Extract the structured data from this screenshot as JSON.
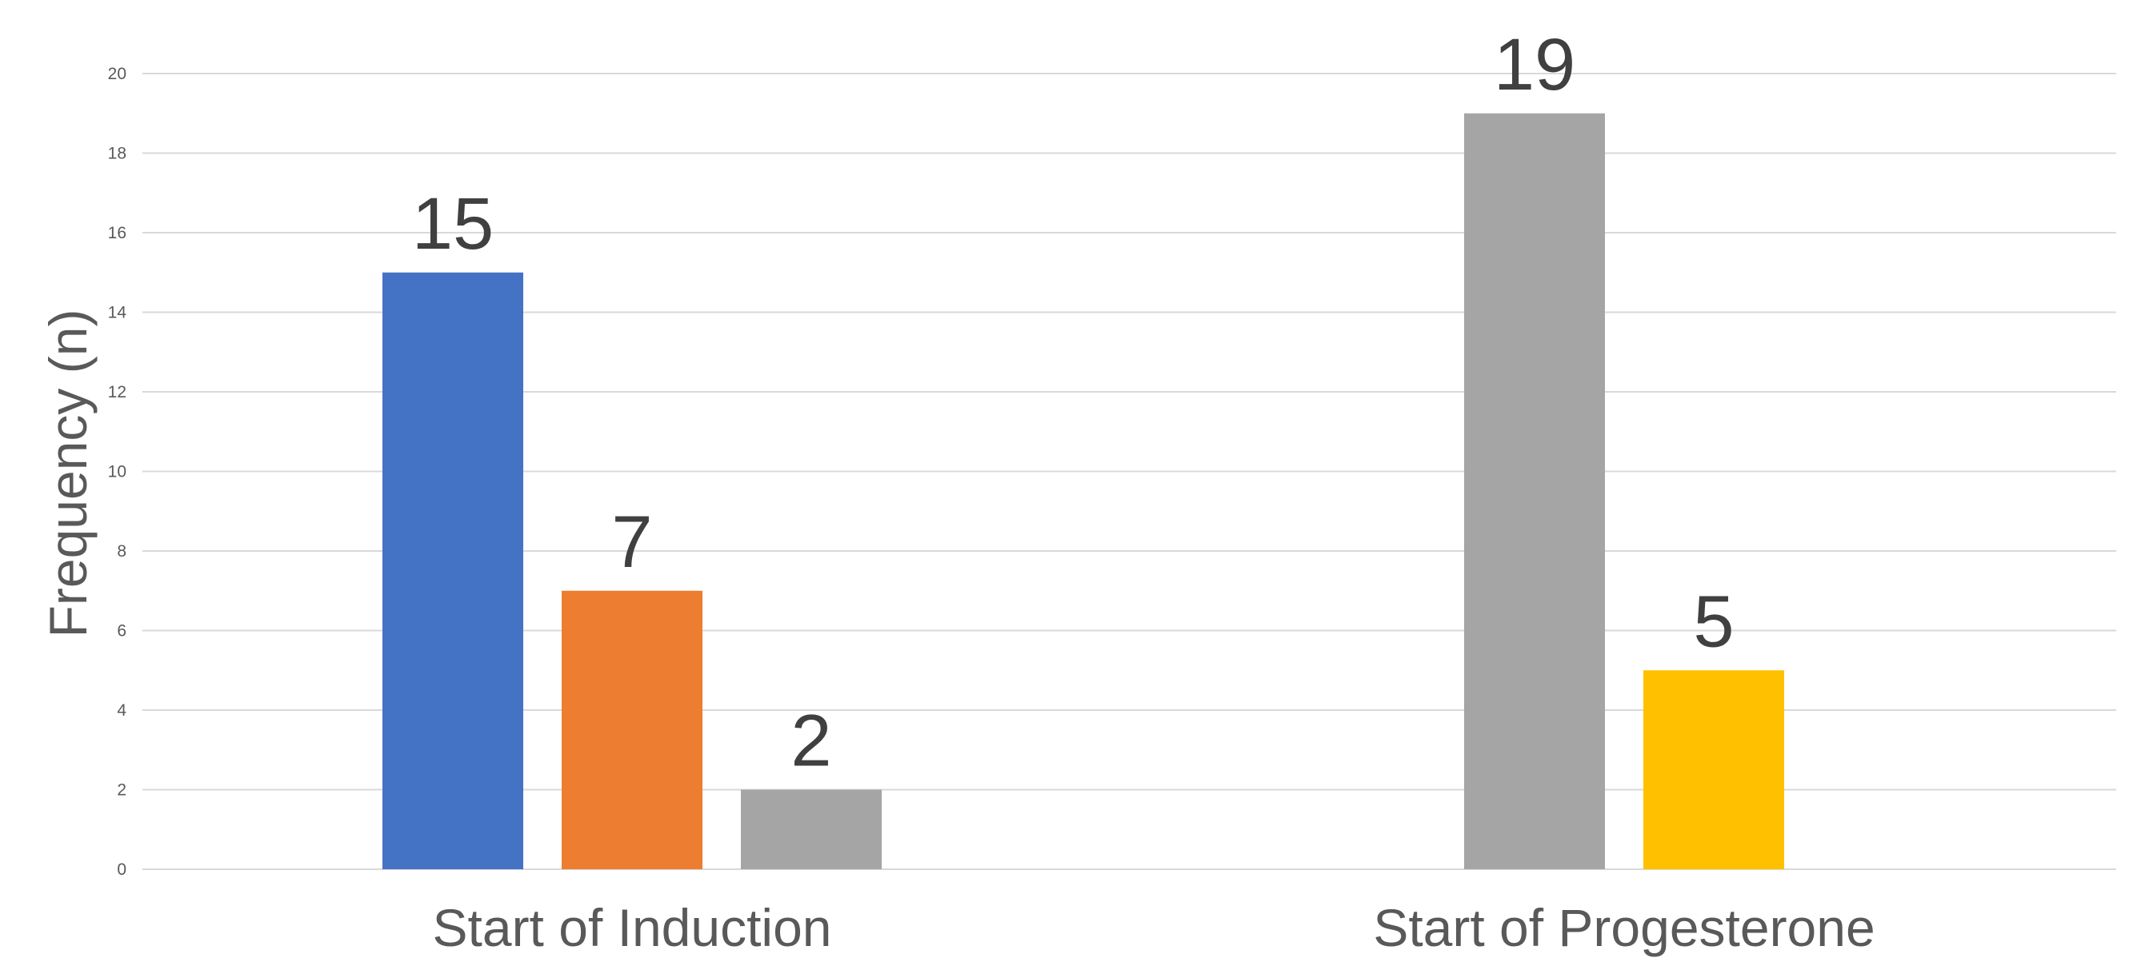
{
  "chart_data": {
    "type": "bar",
    "title": "",
    "xlabel": "",
    "ylabel": "Frequency (n)",
    "ylim": [
      0,
      20
    ],
    "y_ticks": [
      0,
      2,
      4,
      6,
      8,
      10,
      12,
      14,
      16,
      18,
      20
    ],
    "grid": true,
    "legend": "none",
    "groups": [
      {
        "category": "Start of Induction",
        "bars": [
          {
            "value": 15,
            "color": "#4472c4"
          },
          {
            "value": 7,
            "color": "#ed7d31"
          },
          {
            "value": 2,
            "color": "#a5a5a5"
          }
        ]
      },
      {
        "category": "Start of Progesterone",
        "bars": [
          {
            "value": 19,
            "color": "#a5a5a5"
          },
          {
            "value": 5,
            "color": "#ffc000"
          }
        ]
      }
    ]
  }
}
